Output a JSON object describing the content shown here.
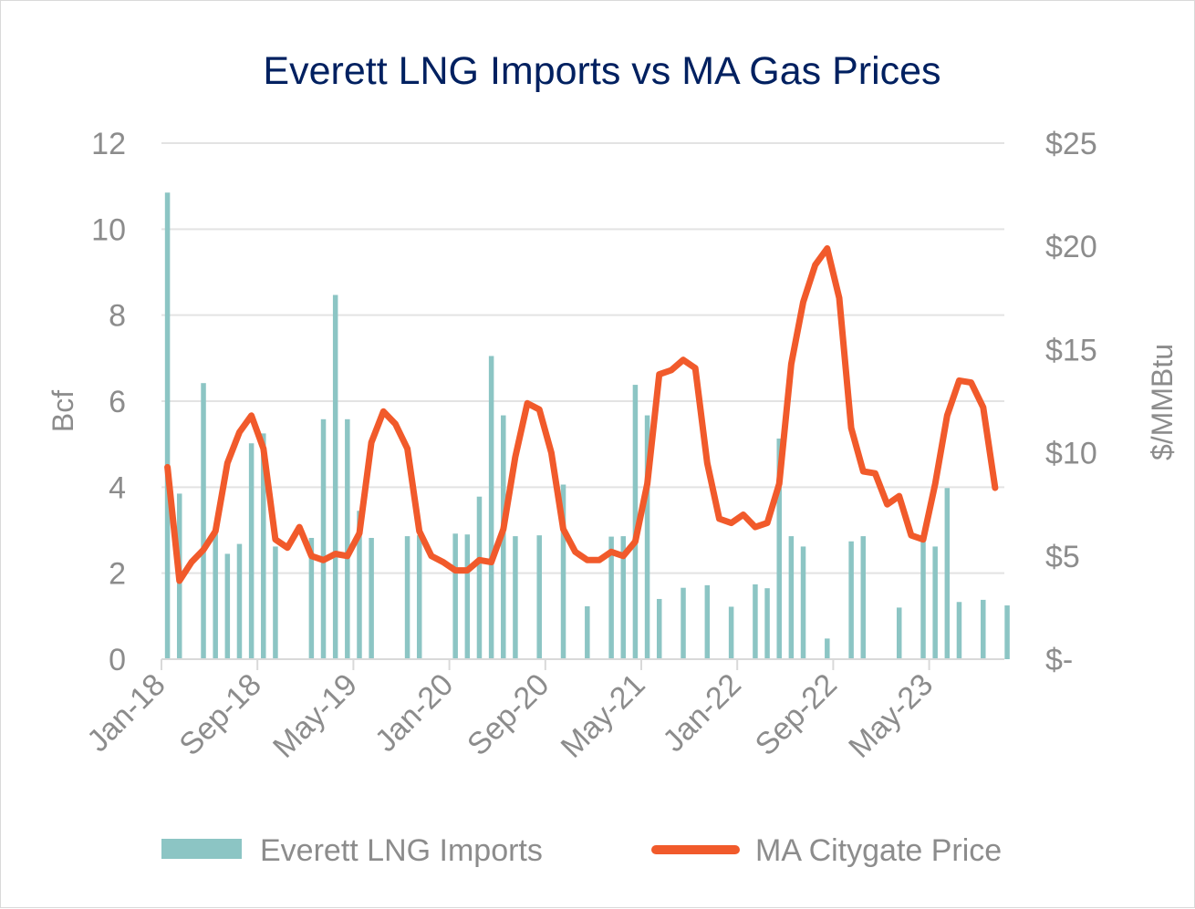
{
  "chart_data": {
    "type": "bar+line",
    "title": "Everett LNG Imports vs MA Gas Prices",
    "y_left": {
      "label": "Bcf",
      "range": [
        0,
        12
      ],
      "ticks": [
        {
          "value": 0,
          "label": "0"
        },
        {
          "value": 2,
          "label": "2"
        },
        {
          "value": 4,
          "label": "4"
        },
        {
          "value": 6,
          "label": "6"
        },
        {
          "value": 8,
          "label": "8"
        },
        {
          "value": 10,
          "label": "10"
        },
        {
          "value": 12,
          "label": "12"
        }
      ]
    },
    "y_right": {
      "label": "$/MMBtu",
      "range": [
        0,
        25
      ],
      "ticks": [
        {
          "value": 0,
          "label": "$-"
        },
        {
          "value": 5,
          "label": "$5"
        },
        {
          "value": 10,
          "label": "$10"
        },
        {
          "value": 15,
          "label": "$15"
        },
        {
          "value": 20,
          "label": "$20"
        },
        {
          "value": 25,
          "label": "$25"
        }
      ]
    },
    "x_axis": {
      "start_month": "Jan-18",
      "tick_labels": [
        "Jan-18",
        "Sep-18",
        "May-19",
        "Jan-20",
        "Sep-20",
        "May-21",
        "Jan-22",
        "Sep-22",
        "May-23"
      ]
    },
    "grid": true,
    "legend_position": "bottom",
    "series": [
      {
        "name": "Everett LNG Imports",
        "type": "bar",
        "axis": "left",
        "color": "#8cc5c4",
        "values": [
          10.85,
          3.85,
          0,
          6.42,
          2.92,
          2.45,
          2.68,
          5.02,
          5.25,
          2.62,
          0,
          0,
          2.82,
          5.58,
          8.47,
          5.58,
          3.45,
          2.82,
          0,
          0,
          2.86,
          2.88,
          0,
          0,
          2.92,
          2.9,
          3.78,
          7.05,
          5.67,
          2.86,
          0,
          2.88,
          0,
          4.06,
          0,
          1.23,
          0,
          2.85,
          2.86,
          6.38,
          5.67,
          1.4,
          0,
          1.66,
          0,
          1.72,
          0,
          1.22,
          0,
          1.74,
          1.65,
          5.13,
          2.86,
          2.62,
          0,
          0.48,
          0,
          2.74,
          2.86,
          0,
          0,
          1.2,
          0,
          2.82,
          2.62,
          3.98,
          1.33,
          0,
          1.38,
          0,
          1.25,
          0,
          0,
          0
        ]
      },
      {
        "name": "MA Citygate Price",
        "type": "line",
        "axis": "right",
        "color": "#f15a2b",
        "values": [
          9.3,
          3.8,
          4.7,
          5.3,
          6.2,
          9.5,
          11.0,
          11.8,
          10.2,
          5.8,
          5.4,
          6.4,
          5.0,
          4.8,
          5.1,
          5.0,
          6.1,
          10.5,
          12.0,
          11.4,
          10.2,
          6.2,
          5.0,
          4.7,
          4.3,
          4.3,
          4.8,
          4.7,
          6.3,
          9.8,
          12.4,
          12.1,
          10.0,
          6.3,
          5.2,
          4.8,
          4.8,
          5.2,
          5.0,
          5.7,
          8.5,
          13.8,
          14.0,
          14.5,
          14.1,
          9.5,
          6.8,
          6.6,
          7.0,
          6.4,
          6.6,
          8.5,
          14.3,
          17.3,
          19.1,
          19.9,
          17.5,
          11.2,
          9.1,
          9.0,
          7.5,
          7.9,
          6.0,
          5.8,
          8.5,
          11.8,
          13.5,
          13.4,
          12.2,
          8.3
        ]
      }
    ]
  }
}
